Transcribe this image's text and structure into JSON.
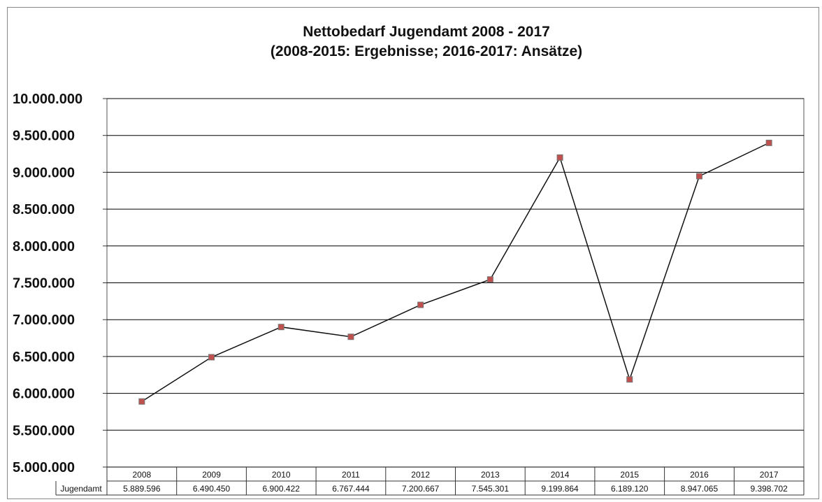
{
  "chart_data": {
    "type": "line",
    "title": "Nettobedarf Jugendamt 2008 - 2017",
    "subtitle": "(2008-2015: Ergebnisse; 2016-2017: Ansätze)",
    "categories": [
      "2008",
      "2009",
      "2010",
      "2011",
      "2012",
      "2013",
      "2014",
      "2015",
      "2016",
      "2017"
    ],
    "series": [
      {
        "name": "Jugendamt",
        "values": [
          5889596,
          6490450,
          6900422,
          6767444,
          7200667,
          7545301,
          9199864,
          6189120,
          8947065,
          9398702
        ],
        "value_labels": [
          "5.889.596",
          "6.490.450",
          "6.900.422",
          "6.767.444",
          "7.200.667",
          "7.545.301",
          "9.199.864",
          "6.189.120",
          "8.947.065",
          "9.398.702"
        ]
      }
    ],
    "ylim": [
      5000000,
      10000000
    ],
    "ytick_values": [
      5000000,
      5500000,
      6000000,
      6500000,
      7000000,
      7500000,
      8000000,
      8500000,
      9000000,
      9500000,
      10000000
    ],
    "ytick_labels": [
      "5.000.000",
      "5.500.000",
      "6.000.000",
      "6.500.000",
      "7.000.000",
      "7.500.000",
      "8.000.000",
      "8.500.000",
      "9.000.000",
      "9.500.000",
      "10.000.000"
    ],
    "grid": true,
    "data_table": true,
    "colors": {
      "line": "#111111",
      "marker": "#c0504d",
      "grid": "#000000"
    }
  }
}
